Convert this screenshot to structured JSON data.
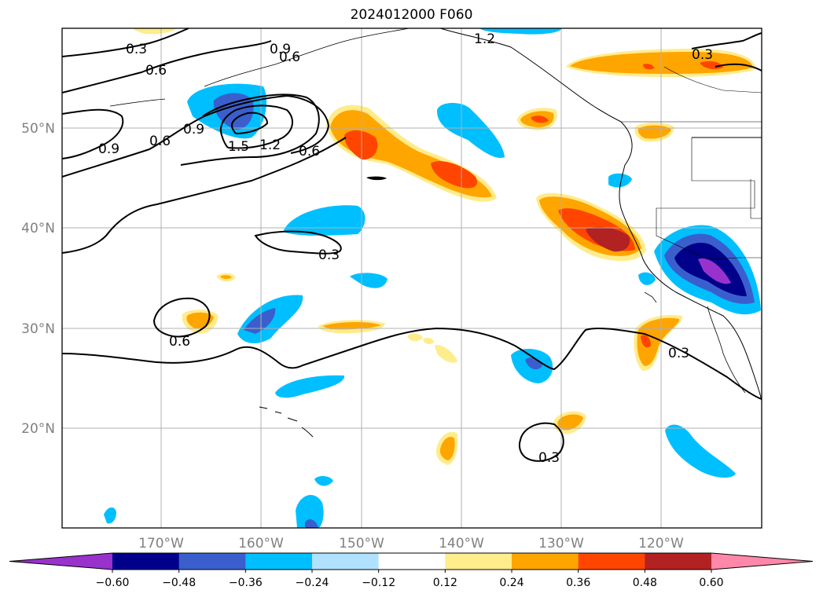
{
  "title": "2024012000 F060",
  "map": {
    "lat_labels": [
      "50°N",
      "40°N",
      "30°N",
      "20°N"
    ],
    "lon_labels": [
      "170°W",
      "160°W",
      "150°W",
      "140°W",
      "130°W",
      "120°W"
    ],
    "gridline_color": "#b0b0b0",
    "contour_labels": [
      "0.3",
      "0.6",
      "0.9",
      "1.2",
      "1.5",
      "0.9",
      "0.6",
      "0.9",
      "0.6",
      "0.6",
      "0.3",
      "0.6",
      "0.3",
      "0.3",
      "0.3",
      "1.2"
    ]
  },
  "colorbar": {
    "ticks": [
      "−0.60",
      "−0.48",
      "−0.36",
      "−0.24",
      "−0.12",
      "0.12",
      "0.24",
      "0.36",
      "0.48",
      "0.60"
    ],
    "colors": [
      "#9932cc",
      "#00008b",
      "#3a5fcd",
      "#00bfff",
      "#b0e2ff",
      "#ffffff",
      "#ffec8b",
      "#ffa500",
      "#ff4500",
      "#b22222",
      "#ff88aa"
    ],
    "extend": "both"
  }
}
